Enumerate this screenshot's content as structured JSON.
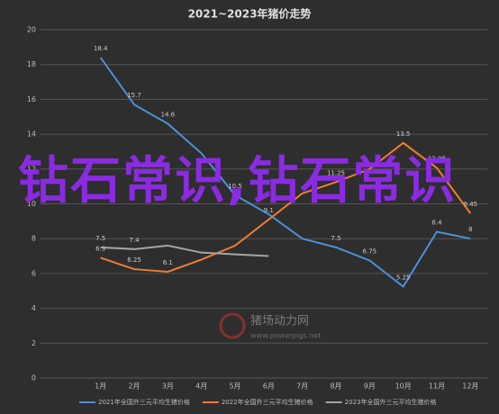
{
  "chart_data": {
    "type": "line",
    "title": "2021~2023年猪价走势",
    "categories": [
      "1月",
      "2月",
      "3月",
      "4月",
      "5月",
      "6月",
      "7月",
      "8月",
      "9月",
      "10月",
      "11月",
      "12月"
    ],
    "series": [
      {
        "name": "2021年全国外三元平均生猪价格",
        "color": "#4a90d9",
        "values": [
          18.4,
          15.7,
          14.6,
          12.9,
          10.5,
          9.4,
          8.0,
          7.5,
          6.75,
          5.25,
          8.4,
          8
        ],
        "value_labels": [
          "18.4",
          "15.7",
          "14.6",
          null,
          "10.5",
          null,
          null,
          "7.5",
          "6.75",
          "5.25",
          "8.4",
          "8"
        ]
      },
      {
        "name": "2022年全国外三元平均生猪价格",
        "color": "#ed7d31",
        "values": [
          6.9,
          6.25,
          6.1,
          6.8,
          7.6,
          9.1,
          10.6,
          11.25,
          12,
          13.5,
          12.06,
          9.45
        ],
        "value_labels": [
          "6.9",
          "6.25",
          "6.1",
          null,
          null,
          "9.1",
          null,
          "11.25",
          null,
          "13.5",
          "12.06",
          "9.45"
        ]
      },
      {
        "name": "2023年全国外三元平均生猪价格",
        "color": "#a5a5a5",
        "values": [
          7.5,
          7.4,
          7.6,
          7.2,
          7.1,
          7.0,
          null,
          null,
          null,
          null,
          null,
          null
        ],
        "value_labels": [
          "7.5",
          "7.4",
          null,
          null,
          null,
          null,
          null,
          null,
          null,
          null,
          null,
          null
        ]
      }
    ],
    "ylim": [
      0,
      20
    ],
    "yticks": [
      0,
      2,
      4,
      6,
      8,
      10,
      12,
      14,
      16,
      18,
      20
    ],
    "grid": true
  },
  "watermark": {
    "text": "钻石常识,钻石常识",
    "logo": "猪场动力网",
    "url": "www.powerpigs.net"
  }
}
